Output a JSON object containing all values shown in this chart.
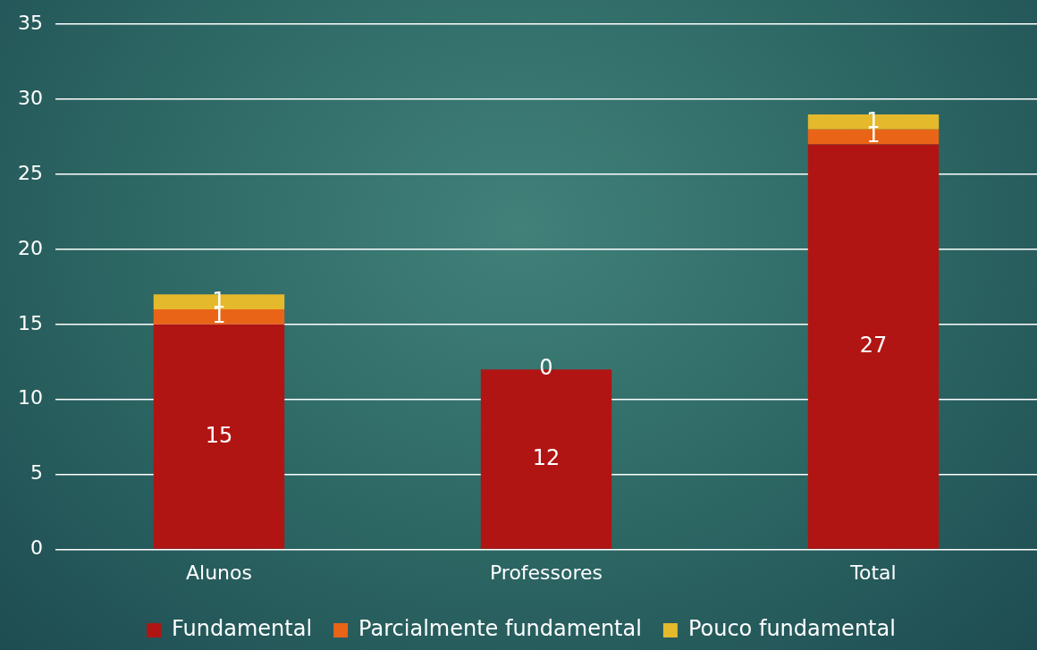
{
  "chart_data": {
    "type": "bar",
    "stacked": true,
    "categories": [
      "Alunos",
      "Professores",
      "Total"
    ],
    "series": [
      {
        "name": "Fundamental",
        "color": "#b01513",
        "values": [
          15,
          12,
          27
        ],
        "value_labels": [
          "15",
          "12",
          "27"
        ]
      },
      {
        "name": "Parcialmente fundamental",
        "color": "#e96417",
        "values": [
          1,
          0,
          1
        ],
        "value_labels": [
          "1",
          "0",
          "1"
        ]
      },
      {
        "name": "Pouco fundamental",
        "color": "#e5b92c",
        "values": [
          1,
          0,
          1
        ],
        "value_labels": [
          "1",
          null,
          "1"
        ]
      }
    ],
    "ylim": [
      0,
      35
    ],
    "yticks": [
      0,
      5,
      10,
      15,
      20,
      25,
      30,
      35
    ],
    "grid": "y",
    "legend": "bottom"
  }
}
